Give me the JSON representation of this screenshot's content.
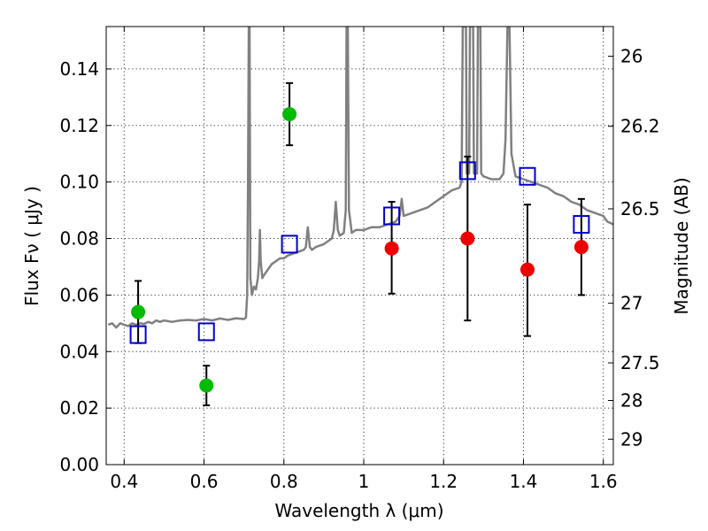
{
  "chart_data": {
    "type": "scatter",
    "xlabel": "Wavelength  λ (μm)",
    "ylabel": "Flux  Fν  ( μJy )",
    "ylabel_right": "Magnitude (AB)",
    "xlim": [
      0.355,
      1.625
    ],
    "ylim": [
      0.0,
      0.155
    ],
    "grid": true,
    "x_ticks": [
      0.4,
      0.6,
      0.8,
      1.0,
      1.2,
      1.4,
      1.6
    ],
    "x_tick_labels": [
      "0.4",
      "0.6",
      "0.8",
      "1",
      "1.2",
      "1.4",
      "1.6"
    ],
    "y_ticks": [
      0.0,
      0.02,
      0.04,
      0.06,
      0.08,
      0.1,
      0.12,
      0.14
    ],
    "y_tick_labels": [
      "0.00",
      "0.02",
      "0.04",
      "0.06",
      "0.08",
      "0.10",
      "0.12",
      "0.14"
    ],
    "right_ticks": [
      {
        "flux": 0.1445,
        "label": "26"
      },
      {
        "flux": 0.1197,
        "label": "26.2"
      },
      {
        "flux": 0.0905,
        "label": "26.5"
      },
      {
        "flux": 0.0571,
        "label": "27"
      },
      {
        "flux": 0.036,
        "label": "27.5"
      },
      {
        "flux": 0.0227,
        "label": "28"
      },
      {
        "flux": 0.009,
        "label": "29"
      }
    ],
    "series": [
      {
        "kind": "model_spectrum",
        "color": "#808080",
        "points": [
          [
            0.36,
            0.0495
          ],
          [
            0.37,
            0.05
          ],
          [
            0.38,
            0.0485
          ],
          [
            0.39,
            0.05
          ],
          [
            0.4,
            0.0495
          ],
          [
            0.41,
            0.049
          ],
          [
            0.42,
            0.05
          ],
          [
            0.43,
            0.0495
          ],
          [
            0.44,
            0.05
          ],
          [
            0.45,
            0.0498
          ],
          [
            0.46,
            0.0505
          ],
          [
            0.47,
            0.05
          ],
          [
            0.48,
            0.051
          ],
          [
            0.49,
            0.0505
          ],
          [
            0.5,
            0.051
          ],
          [
            0.52,
            0.0505
          ],
          [
            0.54,
            0.051
          ],
          [
            0.56,
            0.0512
          ],
          [
            0.58,
            0.051
          ],
          [
            0.6,
            0.0515
          ],
          [
            0.62,
            0.051
          ],
          [
            0.64,
            0.0517
          ],
          [
            0.66,
            0.0512
          ],
          [
            0.68,
            0.0518
          ],
          [
            0.7,
            0.0515
          ],
          [
            0.705,
            0.052
          ],
          [
            0.708,
            0.06
          ],
          [
            0.71,
            0.098
          ],
          [
            0.712,
            0.155
          ],
          [
            0.714,
            0.155
          ],
          [
            0.716,
            0.066
          ],
          [
            0.72,
            0.06
          ],
          [
            0.725,
            0.063
          ],
          [
            0.73,
            0.062
          ],
          [
            0.735,
            0.066
          ],
          [
            0.738,
            0.072
          ],
          [
            0.74,
            0.083
          ],
          [
            0.742,
            0.072
          ],
          [
            0.746,
            0.066
          ],
          [
            0.75,
            0.067
          ],
          [
            0.76,
            0.069
          ],
          [
            0.77,
            0.071
          ],
          [
            0.78,
            0.072
          ],
          [
            0.79,
            0.073
          ],
          [
            0.8,
            0.073
          ],
          [
            0.81,
            0.074
          ],
          [
            0.82,
            0.0745
          ],
          [
            0.83,
            0.075
          ],
          [
            0.84,
            0.0755
          ],
          [
            0.85,
            0.076
          ],
          [
            0.855,
            0.077
          ],
          [
            0.86,
            0.084
          ],
          [
            0.865,
            0.077
          ],
          [
            0.87,
            0.076
          ],
          [
            0.88,
            0.077
          ],
          [
            0.9,
            0.078
          ],
          [
            0.92,
            0.08
          ],
          [
            0.925,
            0.083
          ],
          [
            0.93,
            0.093
          ],
          [
            0.935,
            0.083
          ],
          [
            0.94,
            0.081
          ],
          [
            0.95,
            0.082
          ],
          [
            0.955,
            0.09
          ],
          [
            0.957,
            0.155
          ],
          [
            0.96,
            0.155
          ],
          [
            0.963,
            0.09
          ],
          [
            0.97,
            0.082
          ],
          [
            0.98,
            0.083
          ],
          [
            1.0,
            0.083
          ],
          [
            1.02,
            0.084
          ],
          [
            1.04,
            0.084
          ],
          [
            1.06,
            0.085
          ],
          [
            1.08,
            0.086
          ],
          [
            1.09,
            0.088
          ],
          [
            1.095,
            0.094
          ],
          [
            1.1,
            0.088
          ],
          [
            1.12,
            0.089
          ],
          [
            1.14,
            0.09
          ],
          [
            1.16,
            0.091
          ],
          [
            1.18,
            0.093
          ],
          [
            1.2,
            0.095
          ],
          [
            1.22,
            0.097
          ],
          [
            1.24,
            0.098
          ],
          [
            1.245,
            0.1
          ],
          [
            1.248,
            0.155
          ],
          [
            1.256,
            0.155
          ],
          [
            1.258,
            0.103
          ],
          [
            1.264,
            0.103
          ],
          [
            1.266,
            0.155
          ],
          [
            1.274,
            0.155
          ],
          [
            1.276,
            0.103
          ],
          [
            1.284,
            0.103
          ],
          [
            1.286,
            0.155
          ],
          [
            1.292,
            0.155
          ],
          [
            1.294,
            0.103
          ],
          [
            1.3,
            0.102
          ],
          [
            1.32,
            0.101
          ],
          [
            1.34,
            0.101
          ],
          [
            1.35,
            0.103
          ],
          [
            1.355,
            0.115
          ],
          [
            1.36,
            0.155
          ],
          [
            1.365,
            0.155
          ],
          [
            1.37,
            0.11
          ],
          [
            1.38,
            0.102
          ],
          [
            1.4,
            0.101
          ],
          [
            1.42,
            0.1
          ],
          [
            1.44,
            0.099
          ],
          [
            1.46,
            0.098
          ],
          [
            1.48,
            0.096
          ],
          [
            1.5,
            0.095
          ],
          [
            1.52,
            0.093
          ],
          [
            1.54,
            0.092
          ],
          [
            1.56,
            0.09
          ],
          [
            1.58,
            0.089
          ],
          [
            1.6,
            0.088
          ],
          [
            1.61,
            0.086
          ],
          [
            1.625,
            0.085
          ]
        ]
      },
      {
        "kind": "model_photometry",
        "marker": "open-square",
        "color": "#0000cc",
        "x": [
          0.435,
          0.606,
          0.814,
          1.07,
          1.26,
          1.41,
          1.545
        ],
        "y": [
          0.046,
          0.047,
          0.078,
          0.088,
          0.104,
          0.102,
          0.085
        ]
      },
      {
        "kind": "observed_detected",
        "marker": "filled-circle",
        "color": "#00bb00",
        "x": [
          0.435,
          0.606,
          0.814
        ],
        "y": [
          0.054,
          0.028,
          0.124
        ],
        "yerr_low": [
          0.043,
          0.021,
          0.113
        ],
        "yerr_high": [
          0.065,
          0.035,
          0.135
        ]
      },
      {
        "kind": "observed_nir",
        "marker": "filled-circle",
        "color": "#ee0000",
        "x": [
          1.07,
          1.26,
          1.41,
          1.545
        ],
        "y": [
          0.0765,
          0.08,
          0.069,
          0.077
        ],
        "yerr_low": [
          0.0605,
          0.051,
          0.0455,
          0.06
        ],
        "yerr_high": [
          0.093,
          0.109,
          0.092,
          0.094
        ]
      }
    ]
  }
}
